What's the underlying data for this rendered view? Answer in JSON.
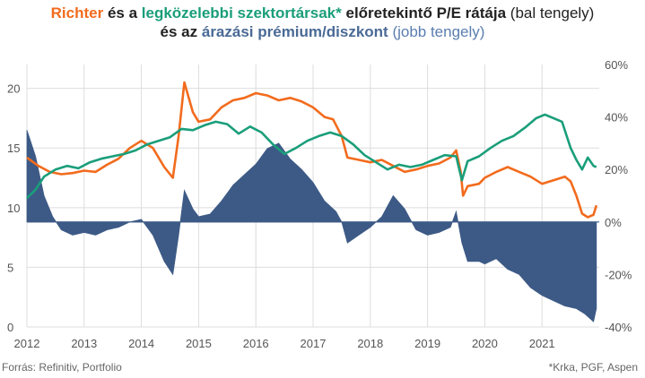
{
  "title": {
    "line1": {
      "part1": "Richter",
      "part2": "és a",
      "part3": "legközelebbi szektortársak*",
      "part4": "előretekintő P/E rátája",
      "part5": "(bal tengely)"
    },
    "line2": {
      "part1": "és az",
      "part2": "árazási prémium/diszkont",
      "part3": "(jobb tengely)"
    }
  },
  "footer": {
    "source": "Forrás: Refinitiv, Portfolio",
    "note": "*Krka, PGF, Aspen"
  },
  "colors": {
    "richter": "#f26b1d",
    "peers": "#1a9e7a",
    "premium": "#3d5a86",
    "grid": "#dddddd"
  },
  "chart_data": {
    "type": "line",
    "x_ticks": [
      "2012",
      "2013",
      "2014",
      "2015",
      "2016",
      "2017",
      "2018",
      "2019",
      "2020",
      "2021"
    ],
    "left_axis": {
      "ticks": [
        "0",
        "5",
        "10",
        "15",
        "20"
      ],
      "ylim": [
        0,
        22
      ]
    },
    "right_axis": {
      "ticks": [
        "60%",
        "40%",
        "20%",
        "0%",
        "-20%",
        "-40%"
      ],
      "ylim": [
        -40,
        60
      ]
    },
    "grid": true,
    "series": [
      {
        "key": "richter",
        "axis": "left",
        "points": [
          [
            2012.0,
            14.2
          ],
          [
            2012.2,
            13.5
          ],
          [
            2012.4,
            13.0
          ],
          [
            2012.6,
            12.8
          ],
          [
            2012.8,
            12.9
          ],
          [
            2013.0,
            13.1
          ],
          [
            2013.2,
            13.0
          ],
          [
            2013.4,
            13.6
          ],
          [
            2013.6,
            14.1
          ],
          [
            2013.8,
            15.0
          ],
          [
            2014.0,
            15.6
          ],
          [
            2014.2,
            15.0
          ],
          [
            2014.4,
            13.4
          ],
          [
            2014.55,
            12.5
          ],
          [
            2014.65,
            16.0
          ],
          [
            2014.75,
            20.5
          ],
          [
            2014.9,
            18.0
          ],
          [
            2015.0,
            17.2
          ],
          [
            2015.2,
            17.4
          ],
          [
            2015.4,
            18.4
          ],
          [
            2015.6,
            19.0
          ],
          [
            2015.8,
            19.2
          ],
          [
            2016.0,
            19.6
          ],
          [
            2016.2,
            19.4
          ],
          [
            2016.4,
            19.0
          ],
          [
            2016.6,
            19.2
          ],
          [
            2016.8,
            18.9
          ],
          [
            2017.0,
            18.4
          ],
          [
            2017.2,
            17.6
          ],
          [
            2017.35,
            17.4
          ],
          [
            2017.5,
            16.0
          ],
          [
            2017.6,
            14.2
          ],
          [
            2017.8,
            14.0
          ],
          [
            2018.0,
            13.8
          ],
          [
            2018.2,
            14.0
          ],
          [
            2018.4,
            13.5
          ],
          [
            2018.6,
            13.0
          ],
          [
            2018.8,
            13.2
          ],
          [
            2019.0,
            13.5
          ],
          [
            2019.2,
            13.7
          ],
          [
            2019.4,
            14.2
          ],
          [
            2019.5,
            14.8
          ],
          [
            2019.58,
            13.0
          ],
          [
            2019.62,
            11.0
          ],
          [
            2019.7,
            11.8
          ],
          [
            2019.9,
            12.0
          ],
          [
            2020.0,
            12.5
          ],
          [
            2020.2,
            13.0
          ],
          [
            2020.4,
            13.4
          ],
          [
            2020.6,
            13.0
          ],
          [
            2020.8,
            12.6
          ],
          [
            2021.0,
            12.0
          ],
          [
            2021.2,
            12.3
          ],
          [
            2021.4,
            12.6
          ],
          [
            2021.5,
            12.2
          ],
          [
            2021.6,
            11.0
          ],
          [
            2021.7,
            9.5
          ],
          [
            2021.8,
            9.2
          ],
          [
            2021.9,
            9.4
          ],
          [
            2021.95,
            10.2
          ]
        ]
      },
      {
        "key": "peers",
        "axis": "left",
        "points": [
          [
            2012.0,
            10.8
          ],
          [
            2012.15,
            11.5
          ],
          [
            2012.3,
            12.6
          ],
          [
            2012.5,
            13.2
          ],
          [
            2012.7,
            13.5
          ],
          [
            2012.9,
            13.3
          ],
          [
            2013.1,
            13.8
          ],
          [
            2013.3,
            14.1
          ],
          [
            2013.5,
            14.3
          ],
          [
            2013.7,
            14.5
          ],
          [
            2013.9,
            14.8
          ],
          [
            2014.1,
            15.3
          ],
          [
            2014.3,
            15.6
          ],
          [
            2014.5,
            15.9
          ],
          [
            2014.7,
            16.6
          ],
          [
            2014.9,
            16.5
          ],
          [
            2015.1,
            16.9
          ],
          [
            2015.3,
            17.2
          ],
          [
            2015.5,
            17.0
          ],
          [
            2015.7,
            16.2
          ],
          [
            2015.9,
            16.8
          ],
          [
            2016.1,
            16.3
          ],
          [
            2016.3,
            15.3
          ],
          [
            2016.5,
            14.5
          ],
          [
            2016.7,
            15.0
          ],
          [
            2016.9,
            15.6
          ],
          [
            2017.1,
            16.0
          ],
          [
            2017.3,
            16.3
          ],
          [
            2017.5,
            16.0
          ],
          [
            2017.7,
            15.3
          ],
          [
            2017.9,
            14.4
          ],
          [
            2018.1,
            13.8
          ],
          [
            2018.3,
            13.2
          ],
          [
            2018.5,
            13.6
          ],
          [
            2018.7,
            13.4
          ],
          [
            2018.9,
            13.6
          ],
          [
            2019.1,
            14.0
          ],
          [
            2019.3,
            14.4
          ],
          [
            2019.5,
            14.3
          ],
          [
            2019.6,
            12.3
          ],
          [
            2019.7,
            13.9
          ],
          [
            2019.9,
            14.3
          ],
          [
            2020.1,
            15.0
          ],
          [
            2020.3,
            15.6
          ],
          [
            2020.5,
            16.0
          ],
          [
            2020.7,
            16.7
          ],
          [
            2020.9,
            17.5
          ],
          [
            2021.05,
            17.8
          ],
          [
            2021.2,
            17.5
          ],
          [
            2021.35,
            17.2
          ],
          [
            2021.5,
            15.0
          ],
          [
            2021.6,
            14.0
          ],
          [
            2021.7,
            13.2
          ],
          [
            2021.8,
            14.2
          ],
          [
            2021.9,
            13.5
          ],
          [
            2021.95,
            13.4
          ]
        ]
      },
      {
        "key": "premium",
        "axis": "right",
        "points": [
          [
            2012.0,
            35
          ],
          [
            2012.15,
            25
          ],
          [
            2012.3,
            10
          ],
          [
            2012.45,
            2
          ],
          [
            2012.6,
            -3
          ],
          [
            2012.8,
            -5
          ],
          [
            2013.0,
            -4
          ],
          [
            2013.2,
            -5
          ],
          [
            2013.4,
            -3
          ],
          [
            2013.6,
            -2
          ],
          [
            2013.8,
            0
          ],
          [
            2014.0,
            1
          ],
          [
            2014.2,
            -5
          ],
          [
            2014.4,
            -15
          ],
          [
            2014.55,
            -20
          ],
          [
            2014.65,
            -5
          ],
          [
            2014.75,
            12
          ],
          [
            2014.9,
            5
          ],
          [
            2015.0,
            2
          ],
          [
            2015.2,
            3
          ],
          [
            2015.4,
            8
          ],
          [
            2015.6,
            14
          ],
          [
            2015.8,
            18
          ],
          [
            2016.0,
            22
          ],
          [
            2016.2,
            28
          ],
          [
            2016.4,
            30
          ],
          [
            2016.6,
            24
          ],
          [
            2016.8,
            20
          ],
          [
            2017.0,
            15
          ],
          [
            2017.2,
            8
          ],
          [
            2017.4,
            4
          ],
          [
            2017.5,
            0
          ],
          [
            2017.6,
            -8
          ],
          [
            2017.8,
            -5
          ],
          [
            2018.0,
            -2
          ],
          [
            2018.2,
            2
          ],
          [
            2018.4,
            10
          ],
          [
            2018.6,
            5
          ],
          [
            2018.8,
            -3
          ],
          [
            2019.0,
            -5
          ],
          [
            2019.2,
            -4
          ],
          [
            2019.4,
            -2
          ],
          [
            2019.5,
            4
          ],
          [
            2019.6,
            -8
          ],
          [
            2019.7,
            -15
          ],
          [
            2019.9,
            -15
          ],
          [
            2020.0,
            -16
          ],
          [
            2020.2,
            -14
          ],
          [
            2020.4,
            -18
          ],
          [
            2020.6,
            -20
          ],
          [
            2020.8,
            -25
          ],
          [
            2021.0,
            -28
          ],
          [
            2021.2,
            -30
          ],
          [
            2021.4,
            -32
          ],
          [
            2021.6,
            -33
          ],
          [
            2021.75,
            -35
          ],
          [
            2021.9,
            -38
          ],
          [
            2021.95,
            -33
          ]
        ]
      }
    ]
  }
}
